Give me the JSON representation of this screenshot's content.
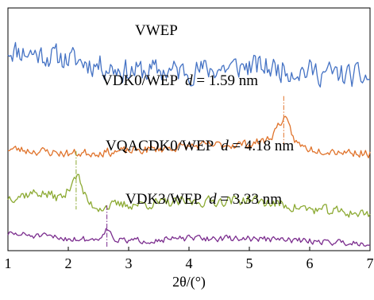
{
  "chart_data": {
    "type": "line",
    "title": "",
    "xlabel": "2θ/(°)",
    "ylabel": "",
    "xlim": [
      1,
      7
    ],
    "xticks": [
      "1",
      "2",
      "3",
      "4",
      "5",
      "6",
      "7"
    ],
    "yticks": [],
    "grid": false,
    "legend": "none",
    "series": [
      {
        "name": "VWEP",
        "color": "#4472C4",
        "baseline": 0.7,
        "noise": 0.07,
        "seed": 11,
        "peak": null,
        "trend": [
          [
            1,
            0.83
          ],
          [
            2,
            0.79
          ],
          [
            3,
            0.74
          ],
          [
            4,
            0.74
          ],
          [
            5,
            0.76
          ],
          [
            6,
            0.74
          ],
          [
            7,
            0.71
          ]
        ]
      },
      {
        "name": "VDK0/WEP",
        "color": "#E0732B",
        "baseline": 0.42,
        "noise": 0.025,
        "seed": 23,
        "peak": {
          "x": 1.59,
          "x_pos": 5.57,
          "height": 0.09,
          "width": 0.15
        },
        "trend": [
          [
            1,
            0.42
          ],
          [
            2,
            0.4
          ],
          [
            3,
            0.41
          ],
          [
            4,
            0.43
          ],
          [
            5,
            0.44
          ],
          [
            5.4,
            0.46
          ],
          [
            6,
            0.42
          ],
          [
            7,
            0.4
          ]
        ]
      },
      {
        "name": "VQACDK0/WEP",
        "color": "#8CAA33",
        "baseline": 0.27,
        "noise": 0.03,
        "seed": 37,
        "peak": {
          "x": 4.18,
          "x_pos": 2.13,
          "height": 0.11,
          "width": 0.13
        },
        "trend": [
          [
            1,
            0.22
          ],
          [
            1.5,
            0.24
          ],
          [
            2.5,
            0.18
          ],
          [
            3,
            0.19
          ],
          [
            4,
            0.2
          ],
          [
            5,
            0.21
          ],
          [
            6,
            0.17
          ],
          [
            7,
            0.15
          ]
        ]
      },
      {
        "name": "VDK3/WEP",
        "color": "#7B2D8E",
        "baseline": 0.05,
        "noise": 0.018,
        "seed": 51,
        "peak": {
          "x": 3.33,
          "x_pos": 2.64,
          "height": 0.045,
          "width": 0.1
        },
        "trend": [
          [
            1,
            0.07
          ],
          [
            2,
            0.05
          ],
          [
            3,
            0.04
          ],
          [
            4,
            0.05
          ],
          [
            5,
            0.05
          ],
          [
            6,
            0.04
          ],
          [
            7,
            0.03
          ]
        ]
      }
    ],
    "annotations": [
      {
        "series": "VWEP",
        "text": "VWEP",
        "d_label": "",
        "d_value": ""
      },
      {
        "series": "VDK0/WEP",
        "text": "VDK0/WEP",
        "d_label": "d",
        "d_value": " = 1.59 nm"
      },
      {
        "series": "VQACDK0/WEP",
        "text": "VQACDK0/WEP",
        "d_label": "d",
        "d_value": " = 4.18 nm"
      },
      {
        "series": "VDK3/WEP",
        "text": "VDK3/WEP",
        "d_label": "d",
        "d_value": " = 3.33 nm"
      }
    ]
  }
}
